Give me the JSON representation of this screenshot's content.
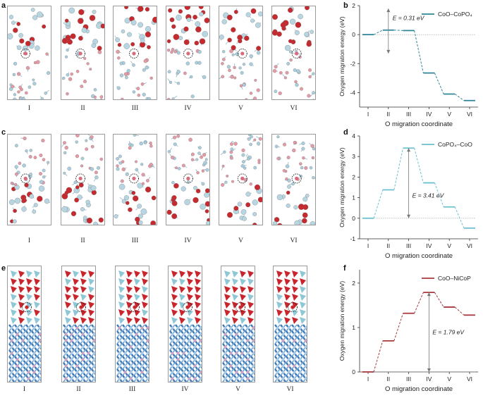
{
  "panels": [
    {
      "label": "a"
    },
    {
      "label": "b"
    },
    {
      "label": "c"
    },
    {
      "label": "d"
    },
    {
      "label": "e"
    },
    {
      "label": "f"
    }
  ],
  "frames": {
    "roman_labels": [
      "I",
      "II",
      "III",
      "IV",
      "V",
      "VI"
    ]
  },
  "chart_data": [
    {
      "type": "line",
      "panel": "b",
      "legend": "CoO–CoPO₄",
      "color": "#2f8596",
      "categories": [
        "I",
        "II",
        "III",
        "IV",
        "V",
        "VI"
      ],
      "values": [
        0.0,
        0.31,
        0.28,
        -2.65,
        -4.1,
        -4.55
      ],
      "ylim": [
        -5,
        2
      ],
      "yticks": [
        -4,
        -2,
        0,
        2
      ],
      "ylabel": "Oxygen migration energy (eV)",
      "xlabel": "O migration coordinate",
      "annotation": "E = 0.31 eV"
    },
    {
      "type": "line",
      "panel": "d",
      "legend": "CoPO₄–CoO",
      "color": "#6cc1d1",
      "categories": [
        "I",
        "II",
        "III",
        "IV",
        "V",
        "VI"
      ],
      "values": [
        0.0,
        1.38,
        3.41,
        1.72,
        0.55,
        -0.48
      ],
      "ylim": [
        -1,
        4
      ],
      "yticks": [
        -1,
        0,
        1,
        2,
        3,
        4
      ],
      "ylabel": "Oxygen migration energy (eV)",
      "xlabel": "O migration coordinate",
      "annotation": "E = 3.41 eV"
    },
    {
      "type": "line",
      "panel": "f",
      "legend": "CoO–NiCoP",
      "color": "#a8383d",
      "categories": [
        "I",
        "II",
        "III",
        "IV",
        "V",
        "VI"
      ],
      "values": [
        0.0,
        0.7,
        1.32,
        1.79,
        1.46,
        1.28
      ],
      "ylim": [
        0,
        2.3
      ],
      "yticks": [
        0,
        1,
        2
      ],
      "ylabel": "Oxygen migration energy (eV)",
      "xlabel": "O migration coordinate",
      "annotation": "E = 1.79 eV"
    }
  ]
}
